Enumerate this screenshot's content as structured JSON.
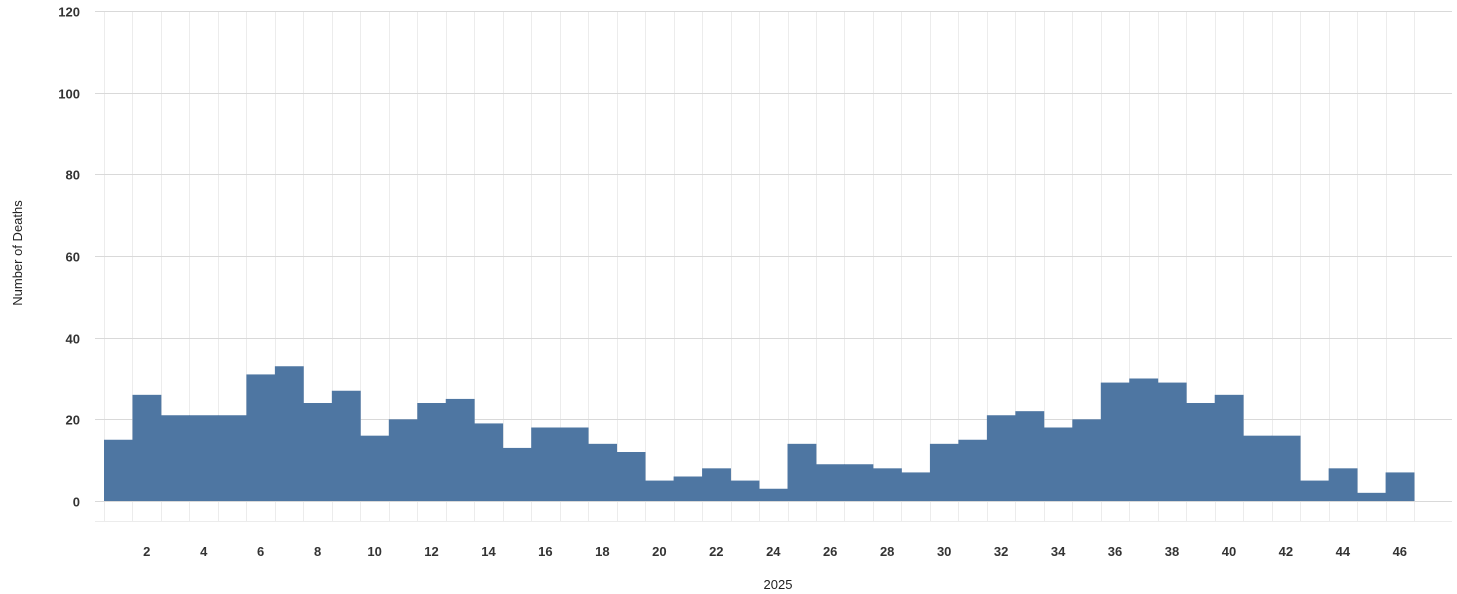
{
  "chart_data": {
    "type": "bar",
    "xlabel": "2025",
    "ylabel": "Number of Deaths",
    "ylim": [
      0,
      120
    ],
    "yticks": [
      0,
      20,
      40,
      60,
      80,
      100,
      120
    ],
    "xlim": [
      0.5,
      46.5
    ],
    "xtick_labels": [
      "2",
      "4",
      "6",
      "8",
      "10",
      "12",
      "14",
      "16",
      "18",
      "20",
      "22",
      "24",
      "26",
      "28",
      "30",
      "32",
      "34",
      "36",
      "38",
      "40",
      "42",
      "44",
      "46"
    ],
    "grid": true,
    "bar_color": "#4e76a2",
    "categories": [
      1,
      2,
      3,
      4,
      5,
      6,
      7,
      8,
      9,
      10,
      11,
      12,
      13,
      14,
      15,
      16,
      17,
      18,
      19,
      20,
      21,
      22,
      23,
      24,
      25,
      26,
      27,
      28,
      29,
      30,
      31,
      32,
      33,
      34,
      35,
      36,
      37,
      38,
      39,
      40,
      41,
      42,
      43,
      44,
      45,
      46
    ],
    "values": [
      15,
      26,
      21,
      21,
      21,
      31,
      33,
      24,
      27,
      16,
      20,
      24,
      25,
      19,
      13,
      18,
      18,
      14,
      12,
      5,
      6,
      8,
      5,
      3,
      14,
      9,
      9,
      8,
      7,
      14,
      15,
      21,
      22,
      18,
      20,
      29,
      30,
      29,
      24,
      26,
      16,
      16,
      5,
      8,
      2,
      7
    ]
  }
}
